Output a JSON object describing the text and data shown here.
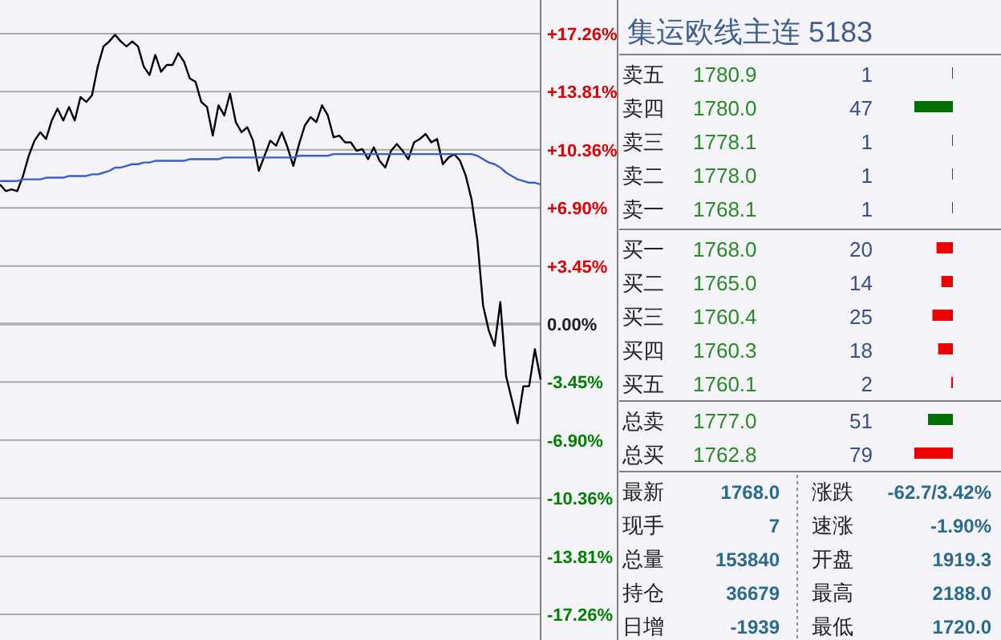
{
  "chart_data": [
    {
      "type": "line",
      "ylim": [
        -17.26,
        17.26
      ],
      "grid": "y",
      "categories": [
        null,
        null,
        null,
        null,
        null,
        null,
        null,
        null,
        null,
        null,
        null,
        null,
        null,
        null,
        null,
        null,
        null,
        null,
        null,
        null,
        null,
        null,
        null,
        null,
        null,
        null,
        null,
        null,
        null,
        null,
        null,
        null,
        null,
        null,
        null,
        null,
        null,
        null,
        null,
        null,
        null,
        null,
        null,
        null,
        null,
        null,
        null,
        null,
        null,
        null,
        null,
        null,
        null,
        null,
        null,
        null,
        null,
        null,
        null,
        null,
        null,
        null,
        null,
        null,
        null,
        null,
        null,
        null,
        null,
        null,
        null,
        null,
        null,
        null,
        null,
        null,
        null,
        null,
        null,
        null,
        null,
        null,
        null,
        null,
        null,
        null,
        null,
        null,
        null,
        null,
        null,
        null,
        null,
        null,
        null
      ],
      "yticks": [
        {
          "value": 17.26,
          "label": "+17.26%"
        },
        {
          "value": 13.81,
          "label": "+13.81%"
        },
        {
          "value": 10.36,
          "label": "+10.36%"
        },
        {
          "value": 6.9,
          "label": "+6.90%"
        },
        {
          "value": 3.45,
          "label": "+3.45%"
        },
        {
          "value": 0,
          "label": "0.00%"
        },
        {
          "value": -3.45,
          "label": "-3.45%"
        },
        {
          "value": -6.9,
          "label": "-6.90%"
        },
        {
          "value": -10.36,
          "label": "-10.36%"
        },
        {
          "value": -13.81,
          "label": "-13.81%"
        },
        {
          "value": -17.26,
          "label": "-17.26%"
        }
      ],
      "ref_lines": [
        {
          "axis": "y",
          "value": 0,
          "color": "#b4b4b4"
        }
      ],
      "series": [
        {
          "color": "#000000",
          "values": [
            8.3,
            7.9,
            8.0,
            7.9,
            8.8,
            10.0,
            10.9,
            11.4,
            11.0,
            12.1,
            12.8,
            12.1,
            12.9,
            12.1,
            13.5,
            13.2,
            13.6,
            15.3,
            16.5,
            16.8,
            17.2,
            16.8,
            16.5,
            16.8,
            16.5,
            15.3,
            14.8,
            16.0,
            15.0,
            15.4,
            15.4,
            16.1,
            15.6,
            14.6,
            14.4,
            13.2,
            12.9,
            11.2,
            13.0,
            12.4,
            13.7,
            12.0,
            11.4,
            11.7,
            10.9,
            9.1,
            10.0,
            10.9,
            10.6,
            11.4,
            10.5,
            9.4,
            10.7,
            11.8,
            12.3,
            12.0,
            13.0,
            12.4,
            11.1,
            11.2,
            10.8,
            10.8,
            10.3,
            10.4,
            9.8,
            10.5,
            9.7,
            9.3,
            10.3,
            10.7,
            10.3,
            9.8,
            10.8,
            11.0,
            11.3,
            10.8,
            11.0,
            9.5,
            9.9,
            10.1,
            9.7,
            8.8,
            7.4,
            5.0,
            1.1,
            -0.4,
            -1.3,
            1.3,
            -3.1,
            -4.5,
            -5.9,
            -3.7,
            -3.7,
            -1.5,
            -3.3
          ]
        },
        {
          "color": "#3a5fcd",
          "values": [
            8.5,
            8.5,
            8.5,
            8.5,
            8.6,
            8.6,
            8.6,
            8.6,
            8.7,
            8.7,
            8.7,
            8.7,
            8.8,
            8.8,
            8.8,
            8.8,
            8.9,
            8.9,
            9.0,
            9.1,
            9.3,
            9.3,
            9.4,
            9.5,
            9.5,
            9.6,
            9.6,
            9.7,
            9.7,
            9.7,
            9.7,
            9.7,
            9.7,
            9.8,
            9.8,
            9.8,
            9.8,
            9.8,
            9.8,
            9.9,
            9.9,
            9.9,
            9.9,
            9.9,
            9.9,
            9.9,
            9.9,
            9.9,
            9.9,
            9.9,
            9.9,
            9.9,
            10.0,
            10.0,
            10.0,
            10.0,
            10.0,
            10.0,
            10.1,
            10.1,
            10.1,
            10.1,
            10.1,
            10.1,
            10.1,
            10.1,
            10.1,
            10.1,
            10.1,
            10.1,
            10.1,
            10.1,
            10.1,
            10.1,
            10.1,
            10.1,
            10.1,
            10.1,
            10.1,
            10.1,
            10.1,
            10.1,
            10.1,
            10.0,
            9.8,
            9.6,
            9.5,
            9.3,
            9.0,
            8.8,
            8.6,
            8.5,
            8.4,
            8.4,
            8.3
          ]
        }
      ]
    },
    {
      "type": "bar",
      "orientation": "horizontal",
      "title": "集运欧线主连  5183",
      "data_labels": true,
      "categories": [
        "卖五",
        "卖四",
        "卖三",
        "卖二",
        "卖一",
        "买一",
        "买二",
        "买三",
        "买四",
        "买五"
      ],
      "values": [
        1,
        47,
        1,
        1,
        1,
        20,
        14,
        25,
        18,
        2
      ],
      "colors": [
        "#007000",
        "#007000",
        "#007000",
        "#007000",
        "#007000",
        "#ee0000",
        "#ee0000",
        "#ee0000",
        "#ee0000",
        "#ee0000"
      ],
      "annotations": [
        "1780.9",
        "1780.0",
        "1778.1",
        "1778.0",
        "1768.1",
        "1768.0",
        "1765.0",
        "1760.4",
        "1760.3",
        "1760.1"
      ]
    },
    {
      "type": "bar",
      "orientation": "horizontal",
      "data_labels": true,
      "categories": [
        "总卖",
        "总买"
      ],
      "values": [
        51,
        79
      ],
      "colors": [
        "#007000",
        "#ee0000"
      ],
      "annotations": [
        "1777.0",
        "1762.8"
      ]
    },
    {
      "type": "other",
      "annotations": [
        "最新",
        "1768.0",
        "涨跌",
        "-62.7/3.42%",
        "现手",
        "7",
        "速涨",
        "-1.90%",
        "总量",
        "153840",
        "开盘",
        "1919.3",
        "持仓",
        "36679",
        "最高",
        "2188.0",
        "日增",
        "-1939",
        "最低",
        "1720.0"
      ]
    }
  ]
}
